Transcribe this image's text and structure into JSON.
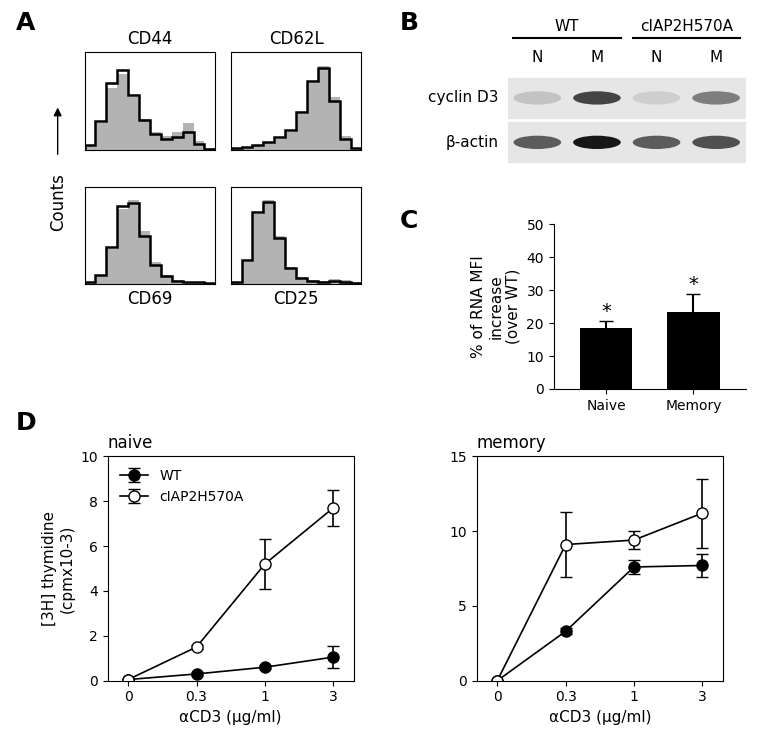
{
  "chart_data": [
    {
      "type": "histogram",
      "panel": "A",
      "ylabel": "Counts",
      "tick_labels": false,
      "bins": [
        0,
        1,
        2,
        3,
        4,
        5,
        6,
        7,
        8,
        9,
        10,
        11,
        12
      ],
      "xlim": [
        0,
        12
      ],
      "ylim": [
        0,
        110
      ],
      "plots": [
        {
          "title": "CD44",
          "series": [
            {
              "type": "area",
              "color": "#b3b3b3",
              "values": [
                5,
                30,
                70,
                85,
                60,
                35,
                20,
                15,
                20,
                30,
                10,
                2
              ]
            },
            {
              "type": "line",
              "color": "#000000",
              "values": [
                5,
                32,
                75,
                90,
                62,
                33,
                18,
                12,
                14,
                20,
                6,
                1
              ]
            }
          ]
        },
        {
          "title": "CD62L",
          "series": [
            {
              "type": "area",
              "color": "#b3b3b3",
              "values": [
                2,
                3,
                5,
                8,
                12,
                20,
                40,
                75,
                95,
                60,
                15,
                2
              ]
            },
            {
              "type": "line",
              "color": "#000000",
              "values": [
                2,
                3,
                5,
                9,
                14,
                22,
                42,
                78,
                92,
                55,
                12,
                2
              ]
            }
          ]
        },
        {
          "xlabel": "CD69",
          "series": [
            {
              "type": "area",
              "color": "#b3b3b3",
              "values": [
                2,
                10,
                40,
                85,
                95,
                60,
                25,
                10,
                5,
                3,
                2,
                1
              ]
            },
            {
              "type": "line",
              "color": "#000000",
              "values": [
                2,
                11,
                42,
                88,
                92,
                55,
                22,
                9,
                4,
                3,
                2,
                1
              ]
            }
          ]
        },
        {
          "xlabel": "CD25",
          "series": [
            {
              "type": "area",
              "color": "#b3b3b3",
              "values": [
                3,
                25,
                80,
                95,
                55,
                20,
                8,
                5,
                4,
                6,
                5,
                2
              ]
            },
            {
              "type": "line",
              "color": "#000000",
              "values": [
                3,
                27,
                82,
                93,
                52,
                18,
                7,
                4,
                3,
                4,
                3,
                1
              ]
            }
          ]
        }
      ]
    },
    {
      "type": "blot",
      "panel": "B",
      "groups": [
        "WT",
        "cIAP2H570A"
      ],
      "lanes": [
        "N",
        "M",
        "N",
        "M"
      ],
      "rows": [
        {
          "name": "cyclin D3",
          "intensity": [
            0.15,
            0.7,
            0.1,
            0.45
          ]
        },
        {
          "name": "β-actin",
          "intensity": [
            0.6,
            0.9,
            0.6,
            0.65
          ]
        }
      ]
    },
    {
      "type": "bar",
      "panel": "C",
      "categories": [
        "Naive",
        "Memory"
      ],
      "values": [
        18.5,
        23.5
      ],
      "errors": [
        2.3,
        5.5
      ],
      "annotations": [
        "*",
        "*"
      ],
      "color": "#000000",
      "ylabel": "% of RNA MFI\nincrease\n(over WT)",
      "ylim": [
        0,
        50
      ],
      "yticks": [
        0,
        10,
        20,
        30,
        40,
        50
      ]
    },
    {
      "type": "line",
      "panel": "D",
      "title": "naive",
      "categories": [
        "0",
        "0.3",
        "1",
        "3"
      ],
      "xlabel": "αCD3 (μg/ml)",
      "ylabel": "[3H] thymidine\n(cpmx10-3)",
      "ylim": [
        0,
        10
      ],
      "yticks": [
        0,
        2,
        4,
        6,
        8,
        10
      ],
      "legend": "upper left",
      "series": [
        {
          "name": "WT",
          "color": "#000000",
          "marker": "o",
          "values": [
            0.05,
            0.3,
            0.6,
            1.05
          ],
          "errors": [
            0,
            0.1,
            0.1,
            0.5
          ]
        },
        {
          "name": "cIAP2H570A",
          "color": "#ffffff",
          "marker": "o",
          "values": [
            0.05,
            1.5,
            5.2,
            7.7
          ],
          "errors": [
            0,
            0.1,
            1.1,
            0.8
          ]
        }
      ]
    },
    {
      "type": "line",
      "panel": "",
      "title": "memory",
      "categories": [
        "0",
        "0.3",
        "1",
        "3"
      ],
      "xlabel": "αCD3 (μg/ml)",
      "ylim": [
        0,
        15
      ],
      "yticks": [
        0,
        5,
        10,
        15
      ],
      "series": [
        {
          "color": "#000000",
          "marker": "o",
          "values": [
            0,
            3.3,
            7.6,
            7.7
          ],
          "errors": [
            0,
            0.2,
            0.5,
            0.8
          ]
        },
        {
          "color": "#ffffff",
          "marker": "o",
          "values": [
            0,
            9.1,
            9.4,
            11.2
          ],
          "errors": [
            0,
            2.2,
            0.6,
            2.3
          ]
        }
      ]
    }
  ]
}
